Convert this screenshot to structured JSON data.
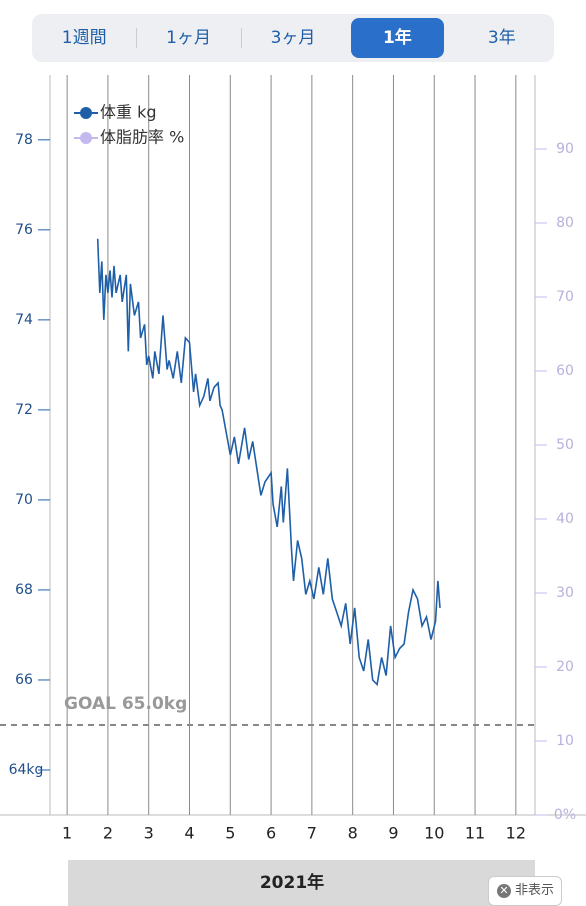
{
  "tabs": {
    "items": [
      "1週間",
      "1ヶ月",
      "3ヶ月",
      "1年",
      "3年"
    ],
    "selected": 3
  },
  "chart_data": {
    "type": "line",
    "xlabel": "2021年",
    "xlim": [
      0.58,
      12.47
    ],
    "xticks": [
      1,
      2,
      3,
      4,
      5,
      6,
      7,
      8,
      9,
      10,
      11,
      12
    ],
    "ylim": [
      63,
      79.44
    ],
    "yticks": [
      {
        "value": 64,
        "label": "64kg"
      },
      66,
      68,
      70,
      72,
      74,
      76,
      78
    ],
    "y2lim": [
      0,
      100
    ],
    "y2ticks": [
      {
        "value": 0,
        "label": "0%"
      },
      10,
      20,
      30,
      40,
      50,
      60,
      70,
      80,
      90
    ],
    "grid": true,
    "legend": "upper left",
    "annotations": [
      {
        "text": "GOAL 65.0kg",
        "value": 65
      }
    ],
    "series": [
      {
        "name": "体重 kg",
        "color": "#1f5fa8",
        "x": [
          1.75,
          1.8,
          1.85,
          1.9,
          1.95,
          2.0,
          2.05,
          2.1,
          2.15,
          2.2,
          2.3,
          2.35,
          2.45,
          2.5,
          2.55,
          2.65,
          2.75,
          2.8,
          2.9,
          2.95,
          3.0,
          3.1,
          3.15,
          3.25,
          3.35,
          3.45,
          3.5,
          3.6,
          3.7,
          3.8,
          3.9,
          4.0,
          4.1,
          4.15,
          4.25,
          4.35,
          4.45,
          4.5,
          4.6,
          4.7,
          4.75,
          4.8,
          4.9,
          5.0,
          5.1,
          5.2,
          5.35,
          5.45,
          5.55,
          5.65,
          5.75,
          5.85,
          6.0,
          6.05,
          6.15,
          6.25,
          6.3,
          6.4,
          6.5,
          6.55,
          6.65,
          6.75,
          6.85,
          6.95,
          7.05,
          7.17,
          7.28,
          7.39,
          7.5,
          7.61,
          7.72,
          7.83,
          7.94,
          8.05,
          8.16,
          8.27,
          8.38,
          8.49,
          8.6,
          8.71,
          8.82,
          8.93,
          9.04,
          9.15,
          9.26,
          9.37,
          9.48,
          9.59,
          9.7,
          9.81,
          9.92,
          10.03,
          10.09,
          10.14
        ],
        "values": [
          75.8,
          74.6,
          75.3,
          74.0,
          75.0,
          74.6,
          75.1,
          74.5,
          75.2,
          74.6,
          75.0,
          74.4,
          75.0,
          73.3,
          74.8,
          74.1,
          74.4,
          73.6,
          73.9,
          73.0,
          73.2,
          72.7,
          73.3,
          72.8,
          74.1,
          72.9,
          73.1,
          72.7,
          73.3,
          72.6,
          73.6,
          73.5,
          72.4,
          72.8,
          72.1,
          72.3,
          72.7,
          72.2,
          72.5,
          72.6,
          72.1,
          72.0,
          71.5,
          71.0,
          71.4,
          70.8,
          71.6,
          70.9,
          71.3,
          70.7,
          70.1,
          70.4,
          70.6,
          69.9,
          69.4,
          70.3,
          69.5,
          70.7,
          68.9,
          68.2,
          69.1,
          68.7,
          67.9,
          68.2,
          67.8,
          68.5,
          67.9,
          68.7,
          67.8,
          67.5,
          67.2,
          67.7,
          66.8,
          67.6,
          66.5,
          66.2,
          66.9,
          66.0,
          65.9,
          66.5,
          66.1,
          67.2,
          66.5,
          66.7,
          66.8,
          67.5,
          68.0,
          67.8,
          67.2,
          67.4,
          66.9,
          67.3,
          68.2,
          67.6
        ]
      },
      {
        "name": "体脂肪率 %",
        "color": "#c4b8ee",
        "axis": "y2",
        "x": [],
        "values": []
      }
    ]
  },
  "footer": {
    "button": "非表示"
  }
}
